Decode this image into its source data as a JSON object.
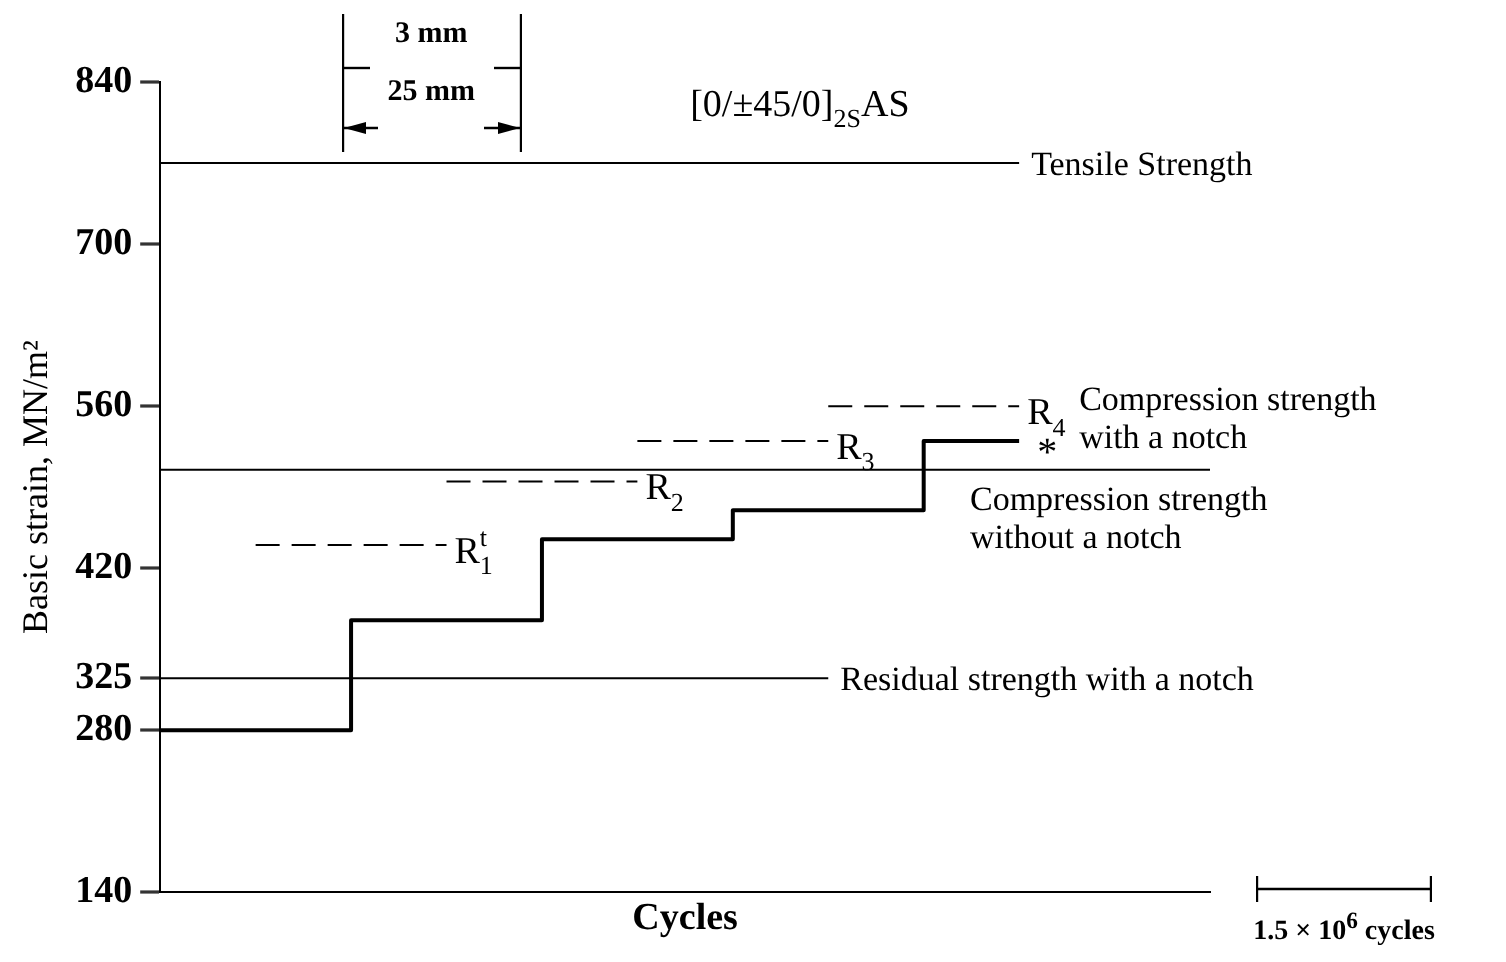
{
  "chart_data": {
    "type": "step",
    "title": "[0/±45/0]$_{2S}$AS",
    "ylabel": "Basic strain, MN/m²",
    "xlabel": "Cycles",
    "categories": [
      null,
      null,
      null,
      null,
      null,
      null,
      null,
      null,
      null,
      null,
      null,
      null
    ],
    "ylim": [
      140,
      840
    ],
    "yticks": [
      140,
      280,
      325,
      420,
      560,
      700,
      840
    ],
    "tick_labels": "y",
    "legend": false,
    "series": [
      {
        "color": "#000000",
        "values": [
          280,
          280,
          375,
          375,
          445,
          445,
          470,
          470,
          530,
          530,
          null,
          null
        ]
      },
      {
        "type": "line",
        "name": "Tensile Strength",
        "color": "#000000",
        "values": [
          770,
          770,
          770,
          770,
          770,
          770,
          770,
          770,
          770,
          770,
          null,
          null
        ]
      },
      {
        "type": "line",
        "name": "Compression strength without a notch",
        "color": "#000000",
        "values": [
          505,
          505,
          505,
          505,
          505,
          505,
          505,
          505,
          505,
          505,
          505,
          505
        ]
      },
      {
        "type": "line",
        "name": "Residual strength with a notch",
        "color": "#000000",
        "values": [
          325,
          325,
          325,
          325,
          325,
          325,
          325,
          325,
          null,
          null,
          null,
          null
        ]
      },
      {
        "type": "line",
        "name": "R$_{1}$$^{t}$",
        "color": "#000000",
        "line_style": "dashed",
        "values": [
          null,
          440,
          440,
          440,
          null,
          null,
          null,
          null,
          null,
          null,
          null,
          null
        ]
      },
      {
        "type": "line",
        "name": "R$_{2}$",
        "color": "#000000",
        "line_style": "dashed",
        "values": [
          null,
          null,
          null,
          495,
          495,
          495,
          null,
          null,
          null,
          null,
          null,
          null
        ]
      },
      {
        "type": "line",
        "name": "R$_{3}$",
        "color": "#000000",
        "line_style": "dashed",
        "values": [
          null,
          null,
          null,
          null,
          null,
          530,
          530,
          530,
          null,
          null,
          null,
          null
        ]
      },
      {
        "type": "line",
        "name": "R$_{4}$",
        "color": "#000000",
        "line_style": "dashed",
        "values": [
          null,
          null,
          null,
          null,
          null,
          null,
          null,
          560,
          560,
          560,
          null,
          null
        ]
      }
    ],
    "annotations": [
      "*",
      "Compression strength with a notch",
      "3 mm",
      "25 mm",
      "1.5 × 10$^{6}$ cycles"
    ]
  }
}
